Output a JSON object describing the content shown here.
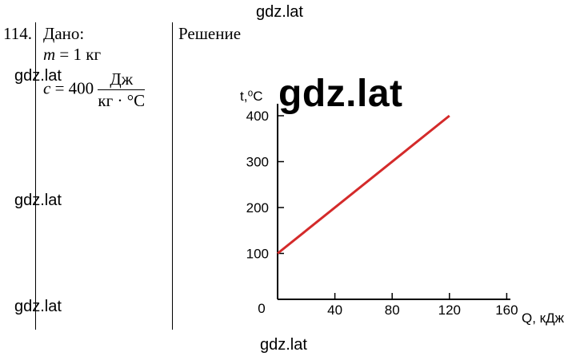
{
  "watermarks": {
    "top": "gdz.lat",
    "left_1": "gdz.lat",
    "left_2": "gdz.lat",
    "left_3": "gdz.lat",
    "center_big": "gdz.lat",
    "bottom": "gdz.lat"
  },
  "problem": {
    "number": "114.",
    "given_label": "Дано:",
    "mass_var": "m",
    "mass_eq": " = 1 кг",
    "c_var": "c",
    "c_eq": " = 400",
    "c_unit_num": "Дж",
    "c_unit_den": "кг · °С",
    "solution_label": "Решение"
  },
  "chart_data": {
    "type": "line",
    "ylabel": "t,⁰C",
    "xlabel": "Q, кДж",
    "origin_label": "0",
    "x_ticks": [
      40,
      80,
      120,
      160
    ],
    "y_ticks": [
      100,
      200,
      300,
      400
    ],
    "xlim": [
      0,
      160
    ],
    "ylim": [
      0,
      400
    ],
    "series": [
      {
        "color": "#d42a2a",
        "x": [
          0,
          120
        ],
        "y": [
          100,
          400
        ]
      }
    ]
  }
}
